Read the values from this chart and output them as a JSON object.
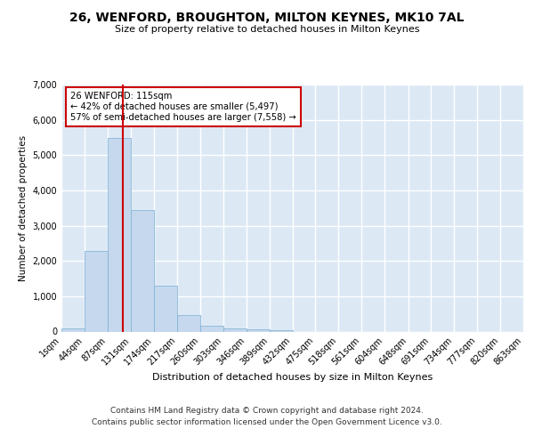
{
  "title": "26, WENFORD, BROUGHTON, MILTON KEYNES, MK10 7AL",
  "subtitle": "Size of property relative to detached houses in Milton Keynes",
  "xlabel": "Distribution of detached houses by size in Milton Keynes",
  "ylabel": "Number of detached properties",
  "footer_line1": "Contains HM Land Registry data © Crown copyright and database right 2024.",
  "footer_line2": "Contains public sector information licensed under the Open Government Licence v3.0.",
  "bar_color": "#c5d8ed",
  "bar_edge_color": "#7aafd4",
  "background_color": "#dce9f5",
  "grid_color": "#ffffff",
  "annotation_box_color": "#cc0000",
  "vline_color": "#cc0000",
  "annotation_text": "26 WENFORD: 115sqm\n← 42% of detached houses are smaller (5,497)\n57% of semi-detached houses are larger (7,558) →",
  "property_size_sqm": 115,
  "bin_edges": [
    1,
    44,
    87,
    131,
    174,
    217,
    260,
    303,
    346,
    389,
    432,
    475,
    518,
    561,
    604,
    648,
    691,
    734,
    777,
    820,
    863
  ],
  "bin_counts": [
    80,
    2280,
    5480,
    3440,
    1310,
    470,
    165,
    90,
    55,
    40,
    0,
    0,
    0,
    0,
    0,
    0,
    0,
    0,
    0,
    0
  ],
  "ylim": [
    0,
    7000
  ],
  "yticks": [
    0,
    1000,
    2000,
    3000,
    4000,
    5000,
    6000,
    7000
  ],
  "tick_labels": [
    "1sqm",
    "44sqm",
    "87sqm",
    "131sqm",
    "174sqm",
    "217sqm",
    "260sqm",
    "303sqm",
    "346sqm",
    "389sqm",
    "432sqm",
    "475sqm",
    "518sqm",
    "561sqm",
    "604sqm",
    "648sqm",
    "691sqm",
    "734sqm",
    "777sqm",
    "820sqm",
    "863sqm"
  ]
}
